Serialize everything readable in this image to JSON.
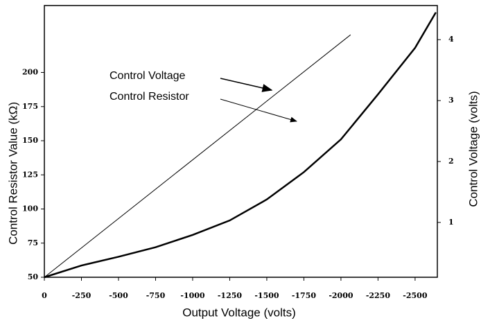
{
  "chart_data": {
    "type": "line",
    "xlabel": "Output Voltage (volts)",
    "ylabel": "Control Resistor Value (kΩ)",
    "y2label": "Control Voltage (volts)",
    "xlim": [
      0,
      -2650
    ],
    "xticks": [
      0,
      -250,
      -500,
      -750,
      -1000,
      -1250,
      -1500,
      -1750,
      -2000,
      -2250,
      -2500
    ],
    "ylim": [
      50,
      249
    ],
    "yticks": [
      50,
      75,
      100,
      125,
      150,
      175,
      200
    ],
    "y2lim": [
      0.1,
      4.56
    ],
    "y2ticks": [
      1,
      2,
      3,
      4
    ],
    "series": [
      {
        "name": "Control Voltage",
        "color": "#000000",
        "axis": "y2",
        "width": 1,
        "x": [
          0,
          -2065
        ],
        "values": [
          0.1,
          4.08
        ]
      },
      {
        "name": "Control Resistor",
        "color": "#000000",
        "axis": "y",
        "width": 2.5,
        "x": [
          0,
          -250,
          -500,
          -750,
          -1000,
          -1250,
          -1500,
          -1750,
          -2000,
          -2250,
          -2500,
          -2640
        ],
        "values": [
          50,
          58.6,
          65,
          72,
          81,
          91.6,
          107,
          127,
          151,
          184,
          218,
          244
        ]
      }
    ],
    "annotations": [
      {
        "text": "Control  Voltage"
      },
      {
        "text": "Control  Resistor"
      }
    ]
  }
}
